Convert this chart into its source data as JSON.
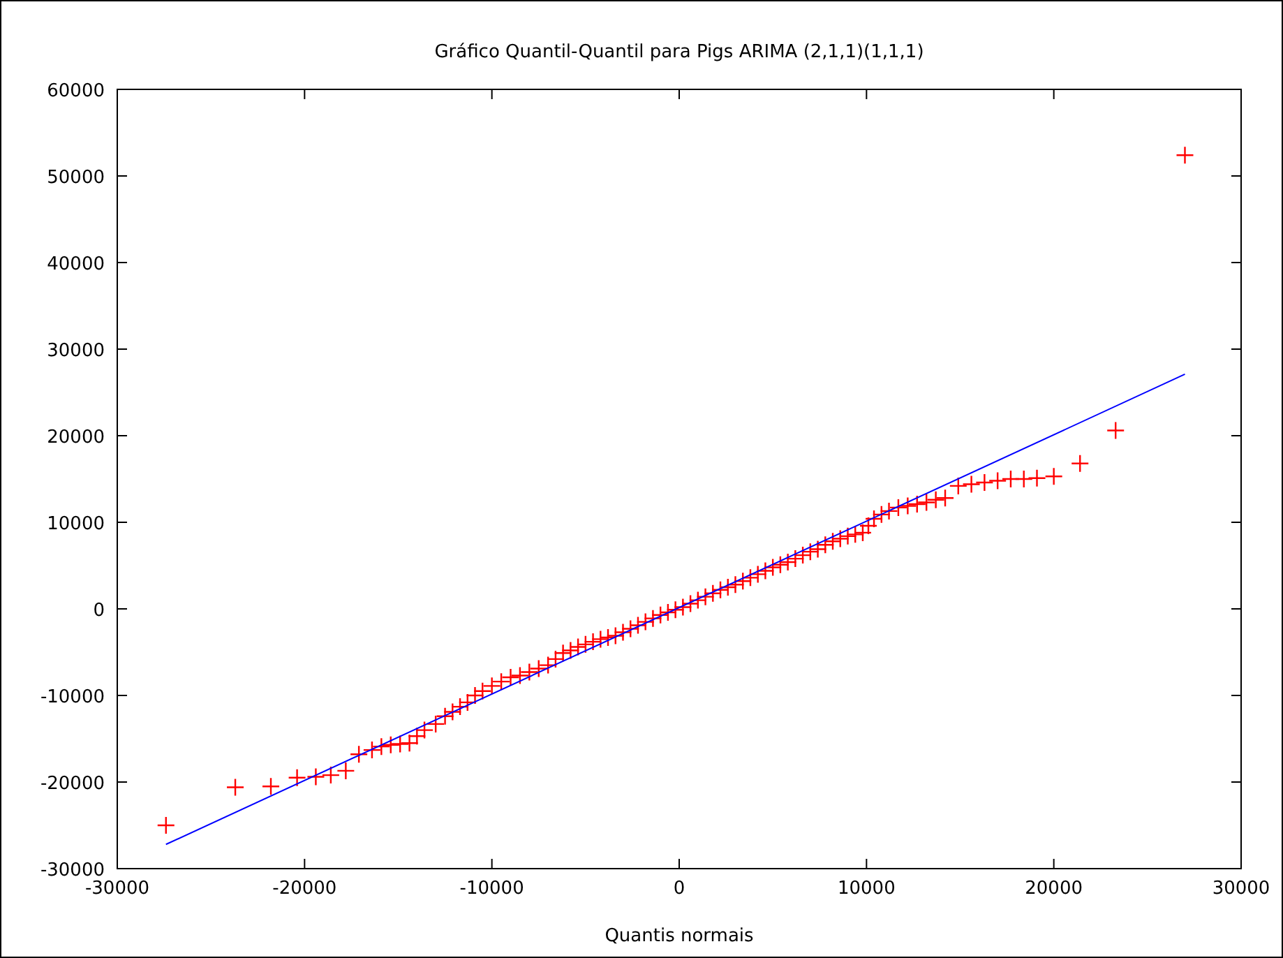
{
  "chart_data": {
    "type": "scatter",
    "title": "Gráfico Quantil-Quantil para Pigs ARIMA (2,1,1)(1,1,1)",
    "xlabel": "Quantis normais",
    "xlim": [
      -30000,
      30000
    ],
    "ylim": [
      -30000,
      60000
    ],
    "xticks": [
      -30000,
      -20000,
      -10000,
      0,
      10000,
      20000,
      30000
    ],
    "yticks": [
      -30000,
      -20000,
      -10000,
      0,
      10000,
      20000,
      30000,
      40000,
      50000,
      60000
    ],
    "grid": false,
    "marker": "cross",
    "series": [
      {
        "color": "#ff0000",
        "x": [
          -27400,
          -23700,
          -21800,
          -20400,
          -19400,
          -18600,
          -17800,
          -17100,
          -16400,
          -15900,
          -15400,
          -14900,
          -14400,
          -14000,
          -13600,
          -13000,
          -12500,
          -12100,
          -11700,
          -11300,
          -10900,
          -10500,
          -10000,
          -9500,
          -9000,
          -8500,
          -8000,
          -7500,
          -7000,
          -6600,
          -6200,
          -5800,
          -5400,
          -5000,
          -4600,
          -4200,
          -3800,
          -3400,
          -3000,
          -2600,
          -2200,
          -1800,
          -1400,
          -1000,
          -600,
          -200,
          200,
          600,
          1000,
          1400,
          1800,
          2200,
          2600,
          3000,
          3400,
          3800,
          4200,
          4600,
          5000,
          5400,
          5800,
          6200,
          6600,
          7000,
          7400,
          7800,
          8200,
          8600,
          9000,
          9400,
          9800,
          10100,
          10400,
          10800,
          11200,
          11700,
          12200,
          12700,
          13200,
          13700,
          14200,
          14900,
          15600,
          16300,
          17000,
          17700,
          18400,
          19100,
          20000,
          21400,
          23300,
          27000
        ],
        "values": [
          -25000,
          -20600,
          -20500,
          -19500,
          -19400,
          -19200,
          -18700,
          -16800,
          -16300,
          -15900,
          -15700,
          -15600,
          -15500,
          -14700,
          -14000,
          -13300,
          -12400,
          -11900,
          -11300,
          -10800,
          -10000,
          -9500,
          -8900,
          -8400,
          -7900,
          -7700,
          -7300,
          -6900,
          -6500,
          -5800,
          -5100,
          -4800,
          -4400,
          -4100,
          -3800,
          -3500,
          -3300,
          -3100,
          -2700,
          -2300,
          -1900,
          -1500,
          -1100,
          -700,
          -400,
          -100,
          200,
          600,
          1000,
          1400,
          1800,
          2200,
          2500,
          2800,
          3200,
          3600,
          4000,
          4400,
          4800,
          5100,
          5400,
          5800,
          6200,
          6600,
          6900,
          7400,
          7800,
          8100,
          8400,
          8600,
          8800,
          9600,
          10400,
          10900,
          11300,
          11700,
          11900,
          12100,
          12300,
          12600,
          12800,
          14200,
          14400,
          14600,
          14800,
          15000,
          15000,
          15100,
          15300,
          16800,
          20600,
          52400
        ]
      },
      {
        "type": "line",
        "color": "#0000ff",
        "marker": "none",
        "x": [
          -27400,
          27000
        ],
        "values": [
          -27200,
          27100
        ]
      }
    ]
  }
}
